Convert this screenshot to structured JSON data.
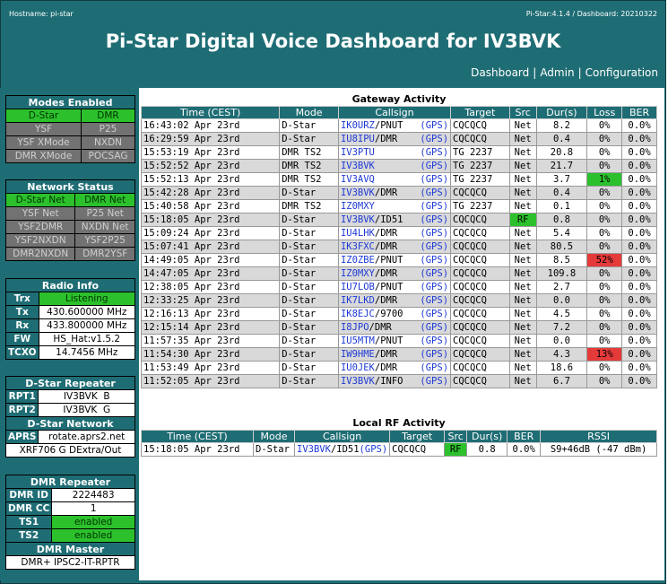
{
  "header": {
    "hostname": "Hostname: pi-star",
    "version": "Pi-Star:4.1.4 / Dashboard: 20210322",
    "title": "Pi-Star Digital Voice Dashboard for IV3BVK",
    "nav": [
      "Dashboard",
      "Admin",
      "Configuration"
    ]
  },
  "modes": {
    "title": "Modes Enabled",
    "items": [
      {
        "label": "D-Star",
        "on": true
      },
      {
        "label": "DMR",
        "on": true
      },
      {
        "label": "YSF",
        "on": false
      },
      {
        "label": "P25",
        "on": false
      },
      {
        "label": "YSF XMode",
        "on": false
      },
      {
        "label": "NXDN",
        "on": false
      },
      {
        "label": "DMR XMode",
        "on": false
      },
      {
        "label": "POCSAG",
        "on": false
      }
    ]
  },
  "network": {
    "title": "Network Status",
    "items": [
      {
        "label": "D-Star Net",
        "on": true
      },
      {
        "label": "DMR Net",
        "on": true
      },
      {
        "label": "YSF Net",
        "on": false
      },
      {
        "label": "P25 Net",
        "on": false
      },
      {
        "label": "YSF2DMR",
        "on": false
      },
      {
        "label": "NXDN Net",
        "on": false
      },
      {
        "label": "YSF2NXDN",
        "on": false
      },
      {
        "label": "YSF2P25",
        "on": false
      },
      {
        "label": "DMR2NXDN",
        "on": false
      },
      {
        "label": "DMR2YSF",
        "on": false
      }
    ]
  },
  "radio": {
    "title": "Radio Info",
    "trx_label": "Trx",
    "trx": "Listening",
    "tx_label": "Tx",
    "tx": "430.600000 MHz",
    "rx_label": "Rx",
    "rx": "433.800000 MHz",
    "fw_label": "FW",
    "fw": "HS_Hat:v1.5.2",
    "tcxo_label": "TCXO",
    "tcxo": "14.7456 MHz"
  },
  "dstar_repeater": {
    "title": "D-Star Repeater",
    "rpt1_label": "RPT1",
    "rpt1": "IV3BVK  B",
    "rpt2_label": "RPT2",
    "rpt2": "IV3BVK  G"
  },
  "dstar_network": {
    "title": "D-Star Network",
    "aprs_label": "APRS",
    "aprs": "rotate.aprs2.net",
    "xrf": "XRF706 G DExtra/Out"
  },
  "dmr_repeater": {
    "title": "DMR Repeater",
    "id_label": "DMR ID",
    "id": "2224483",
    "cc_label": "DMR CC",
    "cc": "1",
    "ts1_label": "TS1",
    "ts1": "enabled",
    "ts2_label": "TS2",
    "ts2": "enabled",
    "master_title": "DMR Master",
    "master": "DMR+ IPSC2-IT-RPTR"
  },
  "gateway": {
    "title": "Gateway Activity",
    "headers": [
      "Time (CEST)",
      "Mode",
      "Callsign",
      "Target",
      "Src",
      "Dur(s)",
      "Loss",
      "BER"
    ],
    "gps_label": "(GPS)",
    "rows": [
      {
        "time": "16:43:02 Apr 23rd",
        "mode": "D-Star",
        "cs": "IK0URZ",
        "suffix": "/PNUT",
        "target": "CQCQCQ",
        "src": "Net",
        "dur": "8.2",
        "loss": "0%",
        "ber": "0.0%"
      },
      {
        "time": "16:29:59 Apr 23rd",
        "mode": "D-Star",
        "cs": "IU8IPU",
        "suffix": "/DMR",
        "target": "CQCQCQ",
        "src": "Net",
        "dur": "0.4",
        "loss": "0%",
        "ber": "0.0%"
      },
      {
        "time": "15:53:19 Apr 23rd",
        "mode": "DMR TS2",
        "cs": "IV3PTU",
        "suffix": "",
        "target": "TG 2237",
        "src": "Net",
        "dur": "20.8",
        "loss": "0%",
        "ber": "0.0%"
      },
      {
        "time": "15:52:52 Apr 23rd",
        "mode": "DMR TS2",
        "cs": "IV3BVK",
        "suffix": "",
        "target": "TG 2237",
        "src": "Net",
        "dur": "21.7",
        "loss": "0%",
        "ber": "0.0%"
      },
      {
        "time": "15:52:13 Apr 23rd",
        "mode": "DMR TS2",
        "cs": "IV3AVQ",
        "suffix": "",
        "target": "TG 2237",
        "src": "Net",
        "dur": "3.7",
        "loss": "1%",
        "ber": "0.0%",
        "lossg": true
      },
      {
        "time": "15:42:28 Apr 23rd",
        "mode": "D-Star",
        "cs": "IV3BVK",
        "suffix": "/DMR",
        "target": "CQCQCQ",
        "src": "Net",
        "dur": "0.4",
        "loss": "0%",
        "ber": "0.0%"
      },
      {
        "time": "15:40:58 Apr 23rd",
        "mode": "DMR TS2",
        "cs": "IZ0MXY",
        "suffix": "",
        "target": "TG 2237",
        "src": "Net",
        "dur": "0.1",
        "loss": "0%",
        "ber": "0.0%"
      },
      {
        "time": "15:18:05 Apr 23rd",
        "mode": "D-Star",
        "cs": "IV3BVK",
        "suffix": "/ID51",
        "target": "CQCQCQ",
        "src": "RF",
        "dur": "0.8",
        "loss": "0%",
        "ber": "0.0%",
        "rf": true
      },
      {
        "time": "15:09:24 Apr 23rd",
        "mode": "D-Star",
        "cs": "IU4LHK",
        "suffix": "/DMR",
        "target": "CQCQCQ",
        "src": "Net",
        "dur": "5.4",
        "loss": "0%",
        "ber": "0.0%"
      },
      {
        "time": "15:07:41 Apr 23rd",
        "mode": "D-Star",
        "cs": "IK3FXC",
        "suffix": "/DMR",
        "target": "CQCQCQ",
        "src": "Net",
        "dur": "80.5",
        "loss": "0%",
        "ber": "0.0%"
      },
      {
        "time": "14:49:05 Apr 23rd",
        "mode": "D-Star",
        "cs": "IZ0ZBE",
        "suffix": "/PNUT",
        "target": "CQCQCQ",
        "src": "Net",
        "dur": "8.5",
        "loss": "52%",
        "ber": "0.0%",
        "lossr": true
      },
      {
        "time": "14:47:05 Apr 23rd",
        "mode": "D-Star",
        "cs": "IZ0MXY",
        "suffix": "/DMR",
        "target": "CQCQCQ",
        "src": "Net",
        "dur": "109.8",
        "loss": "0%",
        "ber": "0.0%"
      },
      {
        "time": "12:38:05 Apr 23rd",
        "mode": "D-Star",
        "cs": "IU7LOB",
        "suffix": "/PNUT",
        "target": "CQCQCQ",
        "src": "Net",
        "dur": "2.7",
        "loss": "0%",
        "ber": "0.0%"
      },
      {
        "time": "12:33:25 Apr 23rd",
        "mode": "D-Star",
        "cs": "IK7LKD",
        "suffix": "/DMR",
        "target": "CQCQCQ",
        "src": "Net",
        "dur": "0.0",
        "loss": "0%",
        "ber": "0.0%"
      },
      {
        "time": "12:16:13 Apr 23rd",
        "mode": "D-Star",
        "cs": "IK8EJC",
        "suffix": "/9700",
        "target": "CQCQCQ",
        "src": "Net",
        "dur": "4.5",
        "loss": "0%",
        "ber": "0.0%"
      },
      {
        "time": "12:15:14 Apr 23rd",
        "mode": "D-Star",
        "cs": "I8JPO",
        "suffix": "/DMR",
        "target": "CQCQCQ",
        "src": "Net",
        "dur": "7.2",
        "loss": "0%",
        "ber": "0.0%"
      },
      {
        "time": "11:57:35 Apr 23rd",
        "mode": "D-Star",
        "cs": "IU5MTM",
        "suffix": "/PNUT",
        "target": "CQCQCQ",
        "src": "Net",
        "dur": "0.0",
        "loss": "0%",
        "ber": "0.0%"
      },
      {
        "time": "11:54:30 Apr 23rd",
        "mode": "D-Star",
        "cs": "IW9HME",
        "suffix": "/DMR",
        "target": "CQCQCQ",
        "src": "Net",
        "dur": "4.3",
        "loss": "13%",
        "ber": "0.0%",
        "lossr": true
      },
      {
        "time": "11:53:49 Apr 23rd",
        "mode": "D-Star",
        "cs": "IU0JEK",
        "suffix": "/DMR",
        "target": "CQCQCQ",
        "src": "Net",
        "dur": "18.6",
        "loss": "0%",
        "ber": "0.0%"
      },
      {
        "time": "11:52:05 Apr 23rd",
        "mode": "D-Star",
        "cs": "IV3BVK",
        "suffix": "/INFO",
        "target": "CQCQCQ",
        "src": "Net",
        "dur": "6.7",
        "loss": "0%",
        "ber": "0.0%"
      }
    ]
  },
  "localrf": {
    "title": "Local RF Activity",
    "headers": [
      "Time (CEST)",
      "Mode",
      "Callsign",
      "Target",
      "Src",
      "Dur(s)",
      "BER",
      "RSSI"
    ],
    "rows": [
      {
        "time": "15:18:05 Apr 23rd",
        "mode": "D-Star",
        "cs": "IV3BVK",
        "suffix": "/ID51",
        "gps": "(GPS)",
        "target": "CQCQCQ",
        "src": "RF",
        "dur": "0.8",
        "ber": "0.0%",
        "rssi": "S9+46dB (-47 dBm)"
      }
    ]
  }
}
